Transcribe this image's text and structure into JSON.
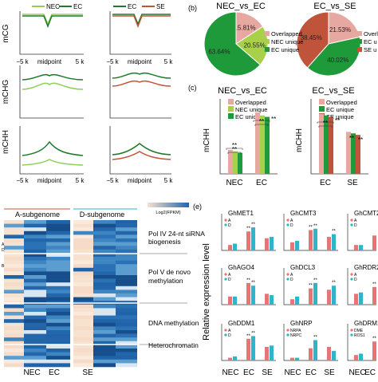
{
  "panel_labels": {
    "b": "(b)",
    "c": "(c)",
    "e": "(e)"
  },
  "panel_a": {
    "row_labels": [
      "mCG",
      "mCHG",
      "mCHH"
    ],
    "legend_left": [
      "NEC",
      "EC"
    ],
    "legend_right": [
      "EC",
      "SE"
    ],
    "x_ticks": [
      "−5 k",
      "midpoint",
      "5 k"
    ],
    "colors": {
      "NEC": "#8fcf5a",
      "EC": "#1d7a2c",
      "SE": "#c0543a"
    }
  },
  "panel_b": {
    "pies": [
      {
        "title": "NEC_vs_EC",
        "slices": [
          {
            "name": "Overlapped",
            "pct": "15.81%",
            "value": 15.81,
            "color": "#e6a8a0"
          },
          {
            "name": "NEC unique",
            "pct": "20.55%",
            "value": 20.55,
            "color": "#a8d048"
          },
          {
            "name": "EC unique",
            "pct": "63.64%",
            "value": 63.64,
            "color": "#1f9a3a"
          }
        ],
        "legend": [
          "Overlapped",
          "NEC unique",
          "EC unique"
        ]
      },
      {
        "title": "EC_vs_SE",
        "slices": [
          {
            "name": "Overlapped",
            "pct": "21.53%",
            "value": 21.53,
            "color": "#e6a8a0"
          },
          {
            "name": "EC unique",
            "pct": "40.02%",
            "value": 40.02,
            "color": "#1f9a3a"
          },
          {
            "name": "SE unique",
            "pct": "38.45%",
            "value": 38.45,
            "color": "#c0543a"
          }
        ],
        "legend": [
          "Overlapped",
          "EC u",
          "SE u"
        ]
      }
    ]
  },
  "panel_c": {
    "ylabel": "mCHH",
    "groups_left": {
      "title": "NEC_vs_EC",
      "legend": [
        "Overlapped",
        "NEC unique",
        "EC unique"
      ],
      "categories": [
        "NEC",
        "EC"
      ],
      "stars": [
        "**",
        "**",
        "**",
        "**"
      ]
    },
    "groups_right": {
      "title": "EC_vs_SE",
      "legend": [
        "Overlapped",
        "EC unique",
        "SE unique"
      ],
      "categories": [
        "EC",
        "SE"
      ],
      "stars": [
        "**",
        "**",
        "**",
        "**"
      ]
    }
  },
  "panel_d": {
    "headers": [
      "A-subgenome",
      "D-subgenome"
    ],
    "scale_label": "Log2(FPKM)",
    "categories": [
      "Pol IV 24-nt siRNA\nbiogenesis",
      "Pol V de novo\nmethylation",
      "DNA methylation",
      "Heterochromatin"
    ],
    "cat_lines": [
      [
        "Pol IV 24-nt siRNA",
        "biogenesis"
      ],
      [
        "Pol V de novo",
        "methylation"
      ],
      [
        "DNA methylation"
      ],
      [
        "Heterochromatin"
      ]
    ],
    "x_labels": [
      "NEC",
      "EC",
      "SE"
    ],
    "side_marks": [
      "A",
      "D",
      "B"
    ],
    "colors": {
      "low": "#f7e1cf",
      "high": "#2166ac"
    }
  },
  "panel_e": {
    "ylabel": "Relative expression level",
    "genes": [
      "GhMET1",
      "GhCMT3",
      "GhCMT2",
      "GhAGO4",
      "GhDCL3",
      "GhRDR2",
      "GhDDM1",
      "GhNRP",
      "GhDRM1/R"
    ],
    "x_labels": [
      "NEC",
      "EC",
      "SE"
    ],
    "legend_ad": [
      "A",
      "D"
    ],
    "legend_nrp": [
      "NRPA",
      "NRPC"
    ],
    "legend_drm": [
      "DME",
      "ROS1"
    ],
    "stars": [
      "**",
      "*"
    ],
    "colors": {
      "A": "#e87575",
      "D": "#2fb5c9"
    }
  },
  "chart_data": [
    {
      "type": "pie",
      "title": "NEC_vs_EC",
      "categories": [
        "Overlapped",
        "NEC unique",
        "EC unique"
      ],
      "values": [
        15.81,
        20.55,
        63.64
      ]
    },
    {
      "type": "pie",
      "title": "EC_vs_SE",
      "categories": [
        "Overlapped",
        "EC unique",
        "SE unique"
      ],
      "values": [
        21.53,
        40.02,
        38.45
      ]
    },
    {
      "type": "bar",
      "title": "NEC_vs_EC",
      "ylabel": "mCHH",
      "categories": [
        "NEC",
        "EC"
      ],
      "series": [
        {
          "name": "Overlapped",
          "values": [
            0.16,
            0.41
          ]
        },
        {
          "name": "NEC unique",
          "values": [
            0.15,
            0.39
          ]
        },
        {
          "name": "EC unique",
          "values": [
            0.14,
            0.38
          ]
        }
      ],
      "ylim": [
        0,
        0.5
      ]
    },
    {
      "type": "bar",
      "title": "EC_vs_SE",
      "ylabel": "mCHH",
      "categories": [
        "EC",
        "SE"
      ],
      "series": [
        {
          "name": "Overlapped",
          "values": [
            0.4,
            0.28
          ]
        },
        {
          "name": "EC unique",
          "values": [
            0.39,
            0.27
          ]
        },
        {
          "name": "SE unique",
          "values": [
            0.38,
            0.26
          ]
        }
      ],
      "ylim": [
        0,
        0.5
      ]
    }
  ]
}
